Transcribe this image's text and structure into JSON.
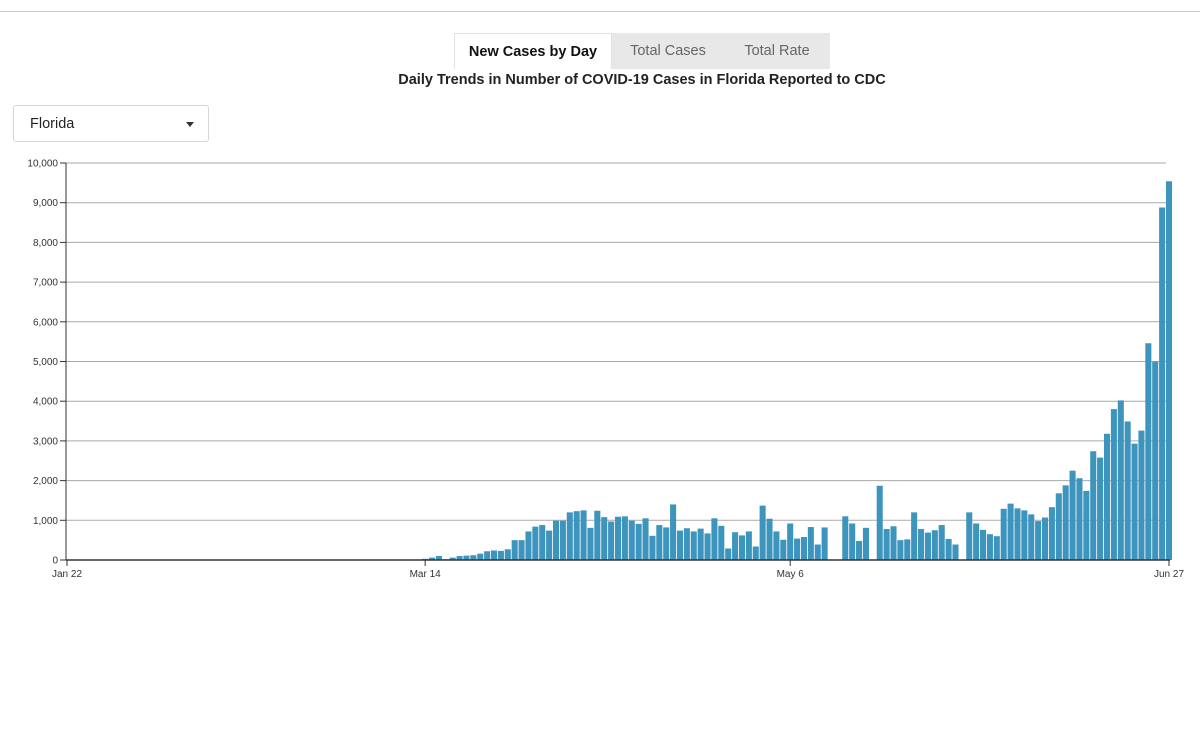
{
  "tabs": [
    {
      "label": "New Cases by Day",
      "active": true
    },
    {
      "label": "Total Cases",
      "active": false
    },
    {
      "label": "Total Rate",
      "active": false
    }
  ],
  "title": "Daily Trends in Number of COVID-19 Cases in Florida Reported to CDC",
  "state_select": {
    "value": "Florida",
    "icon": "caret-down-icon"
  },
  "colors": {
    "bar": "#3d95bd",
    "grid": "#aaaaaa",
    "axis": "#333333"
  },
  "chart_data": {
    "type": "bar",
    "title": "Daily Trends in Number of COVID-19 Cases in Florida Reported to CDC",
    "xlabel": "",
    "ylabel": "",
    "start_date": "Jan 22",
    "end_date": "Jun 27",
    "x_ticks": [
      "Jan 22",
      "Mar 14",
      "May 6",
      "Jun 27"
    ],
    "y_ticks": [
      "0",
      "1,000",
      "2,000",
      "3,000",
      "4,000",
      "5,000",
      "6,000",
      "7,000",
      "8,000",
      "9,000",
      "10,000"
    ],
    "ylim": [
      0,
      10000
    ],
    "grid": true,
    "values": [
      0,
      0,
      0,
      0,
      0,
      0,
      0,
      0,
      0,
      0,
      0,
      0,
      0,
      0,
      0,
      0,
      0,
      0,
      0,
      0,
      0,
      0,
      0,
      0,
      0,
      0,
      0,
      0,
      0,
      0,
      0,
      0,
      0,
      0,
      0,
      0,
      0,
      0,
      0,
      0,
      0,
      0,
      0,
      0,
      0,
      0,
      0,
      0,
      0,
      0,
      0,
      0,
      30,
      60,
      100,
      20,
      60,
      100,
      110,
      120,
      160,
      220,
      240,
      230,
      270,
      500,
      500,
      720,
      840,
      880,
      740,
      990,
      990,
      1200,
      1230,
      1250,
      810,
      1240,
      1080,
      970,
      1090,
      1100,
      990,
      910,
      1050,
      610,
      880,
      820,
      1400,
      740,
      800,
      720,
      790,
      670,
      1050,
      860,
      290,
      700,
      620,
      720,
      340,
      1370,
      1040,
      720,
      510,
      920,
      540,
      580,
      830,
      390,
      820,
      0,
      0,
      1100,
      920,
      480,
      810,
      0,
      1870,
      780,
      850,
      500,
      520,
      1200,
      780,
      690,
      750,
      880,
      530,
      390,
      0,
      1200,
      920,
      760,
      650,
      600,
      1290,
      1420,
      1300,
      1250,
      1150,
      980,
      1070,
      1330,
      1680,
      1880,
      2250,
      2060,
      1740,
      2740,
      2580,
      3180,
      3800,
      4020,
      3490,
      2930,
      3260,
      5460,
      5000,
      8880,
      9540
    ]
  }
}
